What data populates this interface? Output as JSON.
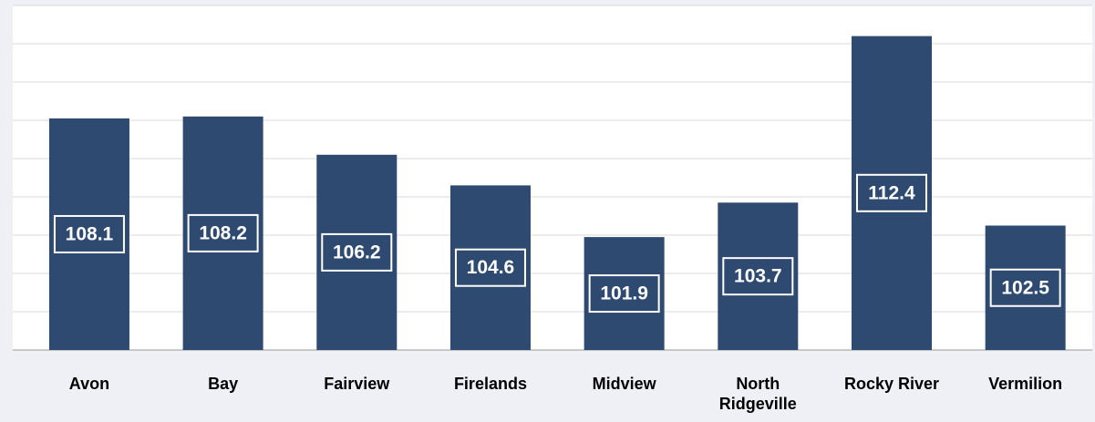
{
  "chart_data": {
    "type": "bar",
    "categories": [
      "Avon",
      "Bay",
      "Fairview",
      "Firelands",
      "Midview",
      "North Ridgeville",
      "Rocky River",
      "Vermilion"
    ],
    "values": [
      108.1,
      108.2,
      106.2,
      104.6,
      101.9,
      103.7,
      112.4,
      102.5
    ],
    "color": "#2e4a70",
    "ylim": [
      96,
      114
    ],
    "yticks": [
      96,
      98,
      100,
      102,
      104,
      106,
      108,
      110,
      112,
      114
    ],
    "grid": true
  }
}
